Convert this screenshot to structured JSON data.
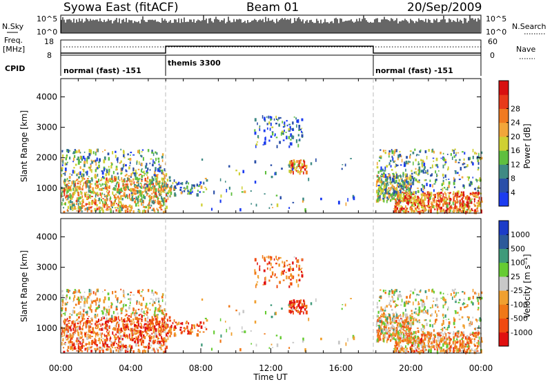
{
  "header": {
    "title": "Syowa East (fitACF)",
    "beam": "Beam 01",
    "date": "20/Sep/2009"
  },
  "top_panels": {
    "nsky_label": "N.Sky",
    "nsky_ticks": [
      "10^5",
      "10^0"
    ],
    "nsearch_label": "N.Search",
    "nsearch_ticks": [
      "10^5",
      "10^0"
    ],
    "freq_label_1": "Freq.",
    "freq_label_2": "[MHz]",
    "freq_ticks": [
      "18",
      "8"
    ],
    "nave_label": "Nave",
    "nave_ticks": [
      "60",
      "0"
    ],
    "cpid_label": "CPID",
    "cpid_segments": [
      {
        "label": "normal (fast) -151",
        "start_hour": 0
      },
      {
        "label": "themis 3300",
        "start_hour": 6
      },
      {
        "label": "normal (fast) -151",
        "start_hour": 18
      }
    ]
  },
  "chart_data": [
    {
      "type": "heatmap",
      "name": "power",
      "ylabel": "Slant Range [km]",
      "yticks": [
        1000,
        2000,
        3000,
        4000
      ],
      "ylim": [
        180,
        4600
      ],
      "xlim_hours": [
        0,
        24
      ],
      "colorbar_label": "Power [dB]",
      "colorbar_ticks": [
        "4",
        "8",
        "12",
        "16",
        "20",
        "24",
        "28"
      ],
      "colorbar_colors": [
        "#1c3cf0",
        "#2a4fa8",
        "#3f8a84",
        "#5fbf3f",
        "#cfd033",
        "#f2a63a",
        "#f07a20",
        "#e83a1a",
        "#d81010"
      ]
    },
    {
      "type": "heatmap",
      "name": "velocity",
      "ylabel": "Slant Range [km]",
      "xlabel": "Time UT",
      "xticks": [
        "00:00",
        "04:00",
        "08:00",
        "12:00",
        "16:00",
        "20:00",
        "00:00"
      ],
      "yticks": [
        1000,
        2000,
        3000,
        4000
      ],
      "ylim": [
        180,
        4600
      ],
      "xlim_hours": [
        0,
        24
      ],
      "colorbar_label": "Velocity [m s⁻¹]",
      "colorbar_ticks": [
        "-1000",
        "-500",
        "-100",
        "-25",
        "25",
        "100",
        "500",
        "1000"
      ],
      "colorbar_colors": [
        "#e01010",
        "#f04a10",
        "#f07818",
        "#f0a030",
        "#c8c8c8",
        "#66cc33",
        "#3f9a7a",
        "#2c5a9a",
        "#1c3cc8"
      ]
    }
  ]
}
